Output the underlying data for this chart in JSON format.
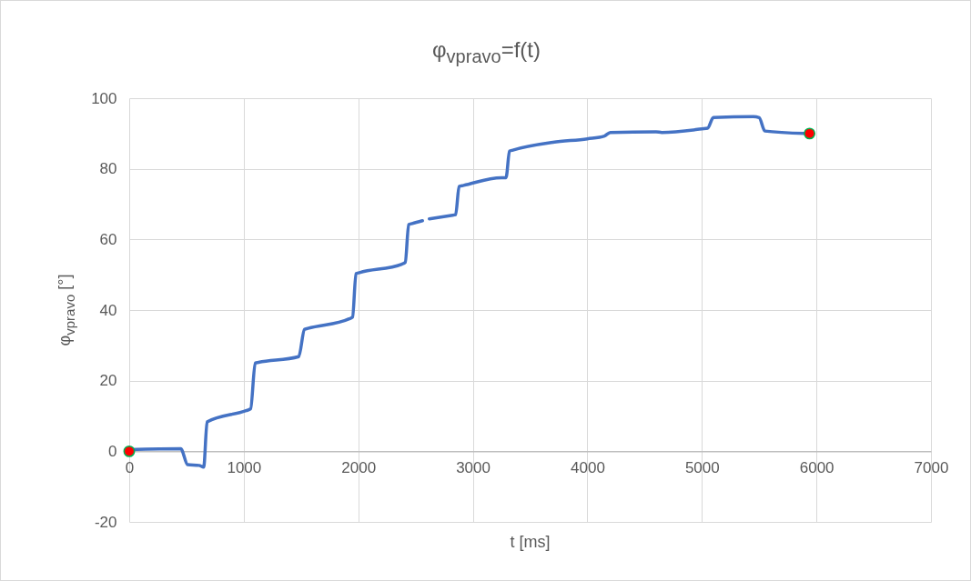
{
  "chart_data": {
    "type": "line",
    "title": "φ$_{vpravo}$=f(t)",
    "xlabel": "t [ms]",
    "ylabel": "φ$_{vpravo}$ [°]",
    "xlim": [
      0,
      7000
    ],
    "xticks": [
      0,
      1000,
      2000,
      3000,
      4000,
      5000,
      6000,
      7000
    ],
    "ylim": [
      -20,
      100
    ],
    "yticks": [
      -20,
      0,
      20,
      40,
      60,
      80,
      100
    ],
    "grid": true,
    "series": [
      {
        "color": "#4472c4",
        "marker": "none",
        "x": [
          0,
          450,
          510,
          610,
          650,
          680,
          1020,
          1060,
          1100,
          1130,
          1480,
          1530,
          1560,
          1920,
          1950,
          1980,
          2010,
          2380,
          2410,
          2440,
          2470,
          2560,
          2590,
          2620,
          2810,
          2850,
          2880,
          2920,
          3250,
          3290,
          3320,
          3350,
          3700,
          4000,
          4150,
          4200,
          4600,
          4650,
          5000,
          5050,
          5100,
          5450,
          5500,
          5550,
          5900
        ],
        "values": [
          0.5,
          0.7,
          -3.8,
          -4,
          -4.5,
          8.3,
          11.5,
          12,
          25,
          25.2,
          26.8,
          34.5,
          34.8,
          37.5,
          38,
          50.3,
          50.6,
          53,
          53.5,
          64.2,
          64.5,
          65.3,
          null,
          65.8,
          66.8,
          67,
          75,
          75.3,
          77.5,
          77.5,
          85,
          85.3,
          87.5,
          88.5,
          89.3,
          90.3,
          90.5,
          90.3,
          91.3,
          91.5,
          94.5,
          94.8,
          94.5,
          90.7,
          90
        ]
      },
      {
        "type": "scatter",
        "color": "#ff0000",
        "marker": "circle",
        "x": [
          0,
          5940
        ],
        "values": [
          0,
          90
        ]
      }
    ]
  }
}
